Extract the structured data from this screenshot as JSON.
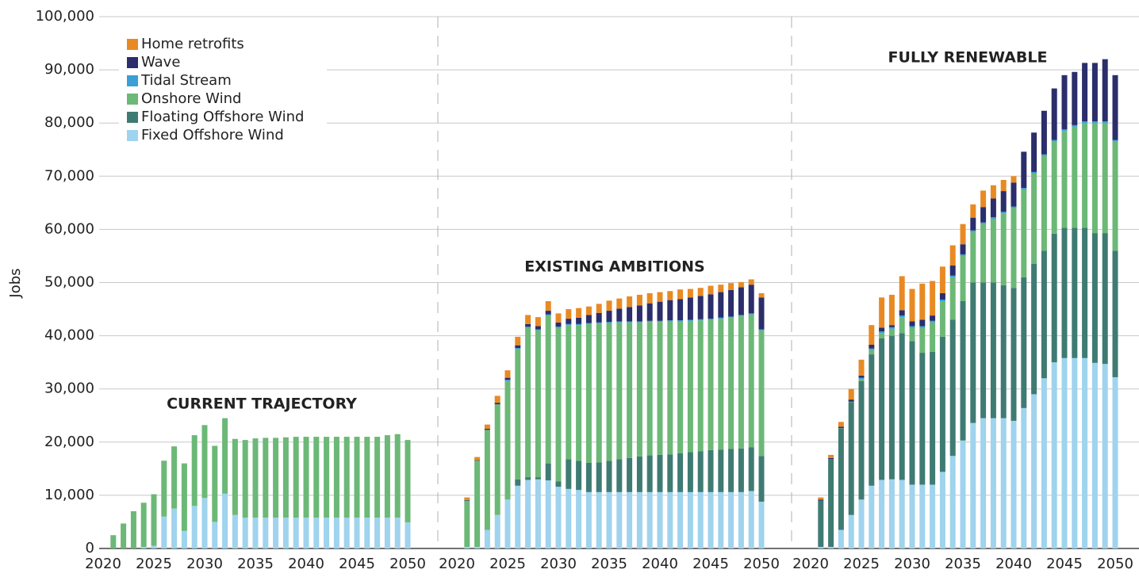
{
  "chart_data": {
    "type": "bar",
    "stacked": true,
    "y_label": "Jobs",
    "ylim": [
      0,
      100000
    ],
    "yticks": [
      0,
      {
        "value": 10000,
        "label": "10,000"
      },
      {
        "value": 20000,
        "label": "20,000"
      },
      {
        "value": 30000,
        "label": "30,000"
      },
      {
        "value": 40000,
        "label": "40,000"
      },
      {
        "value": 50000,
        "label": "50,000"
      },
      {
        "value": 60000,
        "label": "60,000"
      },
      {
        "value": 70000,
        "label": "70,000"
      },
      {
        "value": 80000,
        "label": "80,000"
      },
      {
        "value": 90000,
        "label": "90,000"
      },
      {
        "value": 100000,
        "label": "100,000"
      }
    ],
    "grid": true,
    "legend": "upper left",
    "categories": [
      "2020",
      null,
      null,
      null,
      null,
      "2025",
      null,
      null,
      null,
      null,
      "2030",
      null,
      null,
      null,
      null,
      "2035",
      null,
      null,
      null,
      null,
      "2040",
      null,
      null,
      null,
      null,
      "2045",
      null,
      null,
      null,
      null,
      "2050"
    ],
    "panels": [
      "CURRENT TRAJECTORY",
      "EXISTING AMBITIONS",
      "FULLY RENEWABLE"
    ],
    "series": [
      {
        "name": "Fixed Offshore Wind",
        "color": "#9fd3ee",
        "values": [
          [
            0,
            0,
            0,
            0,
            300,
            500,
            6000,
            7500,
            3300,
            8000,
            9500,
            5000,
            10300,
            6300,
            5800,
            5800,
            5800,
            5800,
            5800,
            5800,
            5800,
            5800,
            5800,
            5800,
            5800,
            5800,
            5800,
            5800,
            5800,
            5800,
            4900
          ],
          [
            0,
            300,
            300,
            3500,
            6300,
            9200,
            11800,
            12900,
            13000,
            12800,
            11600,
            11200,
            11000,
            10600,
            10600,
            10600,
            10600,
            10600,
            10600,
            10600,
            10600,
            10600,
            10600,
            10600,
            10600,
            10600,
            10600,
            10600,
            10600,
            10800,
            8800
          ],
          [
            0,
            300,
            300,
            3500,
            6300,
            9200,
            11800,
            12900,
            13000,
            12900,
            12000,
            12000,
            12000,
            14400,
            17400,
            20300,
            23600,
            24500,
            24500,
            24500,
            24000,
            26400,
            29000,
            32000,
            35000,
            35800,
            35800,
            35800,
            34900,
            34700,
            32200
          ]
        ]
      },
      {
        "name": "Floating Offshore Wind",
        "color": "#3f7b73",
        "values": [
          [
            0,
            0,
            0,
            0,
            0,
            0,
            0,
            0,
            0,
            0,
            0,
            0,
            0,
            0,
            0,
            0,
            0,
            0,
            0,
            0,
            0,
            0,
            0,
            0,
            0,
            0,
            0,
            0,
            0,
            0,
            0
          ],
          [
            0,
            0,
            0,
            0,
            0,
            0,
            1200,
            500,
            400,
            3200,
            1000,
            5600,
            5500,
            5500,
            5600,
            5900,
            6200,
            6400,
            6700,
            6900,
            7000,
            7100,
            7300,
            7500,
            7700,
            7900,
            8000,
            8100,
            8200,
            8200,
            8600
          ],
          [
            0,
            8700,
            16500,
            19000,
            21200,
            22300,
            24700,
            26600,
            27000,
            27600,
            27000,
            24800,
            25000,
            25400,
            25600,
            26200,
            26400,
            25500,
            25500,
            25000,
            25000,
            24600,
            24500,
            24000,
            24200,
            24500,
            24500,
            24500,
            24400,
            24600,
            23800
          ]
        ]
      },
      {
        "name": "Onshore Wind",
        "color": "#6cb877",
        "values": [
          [
            0,
            2500,
            4700,
            7000,
            8300,
            9700,
            10500,
            11700,
            12700,
            13300,
            13700,
            14300,
            14200,
            14300,
            14600,
            14900,
            15000,
            15000,
            15100,
            15200,
            15200,
            15200,
            15200,
            15200,
            15200,
            15200,
            15200,
            15200,
            15500,
            15700,
            15500
          ],
          [
            0,
            8700,
            16200,
            18800,
            20800,
            22300,
            24500,
            28100,
            27600,
            27800,
            28900,
            25200,
            25500,
            26100,
            26100,
            25900,
            25700,
            25500,
            25200,
            25100,
            25000,
            25000,
            24800,
            24700,
            24600,
            24500,
            24600,
            24700,
            24900,
            25000,
            23600
          ],
          [
            0,
            0,
            0,
            100,
            100,
            300,
            800,
            1000,
            1300,
            3000,
            2500,
            4700,
            5500,
            6700,
            8000,
            8500,
            9500,
            11000,
            12000,
            13500,
            15000,
            16500,
            17000,
            17800,
            17300,
            18200,
            19000,
            19700,
            20700,
            20700,
            20500
          ]
        ]
      },
      {
        "name": "Tidal Stream",
        "color": "#3a9fd6",
        "values": [
          [
            0,
            0,
            0,
            0,
            0,
            0,
            0,
            0,
            0,
            0,
            0,
            0,
            0,
            0,
            0,
            0,
            0,
            0,
            0,
            0,
            0,
            0,
            0,
            0,
            0,
            0,
            0,
            0,
            0,
            0,
            0
          ],
          [
            0,
            0,
            0,
            0,
            0,
            200,
            200,
            200,
            200,
            200,
            200,
            200,
            200,
            200,
            200,
            200,
            200,
            200,
            200,
            200,
            200,
            200,
            200,
            200,
            200,
            200,
            200,
            200,
            200,
            200,
            200
          ],
          [
            0,
            0,
            0,
            0,
            0,
            300,
            300,
            300,
            300,
            300,
            300,
            300,
            300,
            300,
            300,
            300,
            300,
            300,
            300,
            300,
            300,
            300,
            300,
            300,
            300,
            300,
            300,
            300,
            300,
            300,
            300
          ]
        ]
      },
      {
        "name": "Wave",
        "color": "#2b2e6b",
        "values": [
          [
            0,
            0,
            0,
            0,
            0,
            0,
            0,
            0,
            0,
            0,
            0,
            0,
            0,
            0,
            0,
            0,
            0,
            0,
            0,
            0,
            0,
            0,
            0,
            0,
            0,
            0,
            0,
            0,
            0,
            0,
            0
          ],
          [
            0,
            100,
            100,
            200,
            300,
            400,
            500,
            500,
            600,
            700,
            800,
            1000,
            1200,
            1500,
            1800,
            2100,
            2400,
            2700,
            3000,
            3300,
            3600,
            3800,
            4000,
            4200,
            4400,
            4600,
            4800,
            5000,
            5200,
            5400,
            6000
          ],
          [
            0,
            200,
            200,
            300,
            400,
            400,
            700,
            700,
            400,
            1000,
            900,
            1200,
            1000,
            1200,
            1900,
            1900,
            2400,
            2900,
            3500,
            3900,
            4500,
            6800,
            7400,
            8200,
            9700,
            10200,
            10000,
            11000,
            11000,
            11700,
            12200
          ]
        ]
      },
      {
        "name": "Home retrofits",
        "color": "#e88a24",
        "values": [
          [
            0,
            0,
            0,
            0,
            0,
            0,
            0,
            0,
            0,
            0,
            0,
            0,
            0,
            0,
            0,
            0,
            0,
            0,
            0,
            0,
            0,
            0,
            0,
            0,
            0,
            0,
            0,
            0,
            0,
            0,
            0
          ],
          [
            0,
            500,
            600,
            800,
            1300,
            1400,
            1600,
            1700,
            1700,
            1800,
            1700,
            1800,
            1800,
            1600,
            1700,
            1900,
            1900,
            2000,
            2000,
            1900,
            1800,
            1700,
            1800,
            1600,
            1500,
            1600,
            1400,
            1300,
            1000,
            1000,
            800
          ],
          [
            0,
            400,
            600,
            900,
            2000,
            3000,
            3700,
            5700,
            5700,
            6400,
            6100,
            6800,
            6500,
            5000,
            3800,
            3800,
            2500,
            3100,
            2500,
            2100,
            1200,
            0,
            0,
            0,
            0,
            0,
            0,
            0,
            0,
            0,
            0
          ]
        ]
      }
    ]
  }
}
